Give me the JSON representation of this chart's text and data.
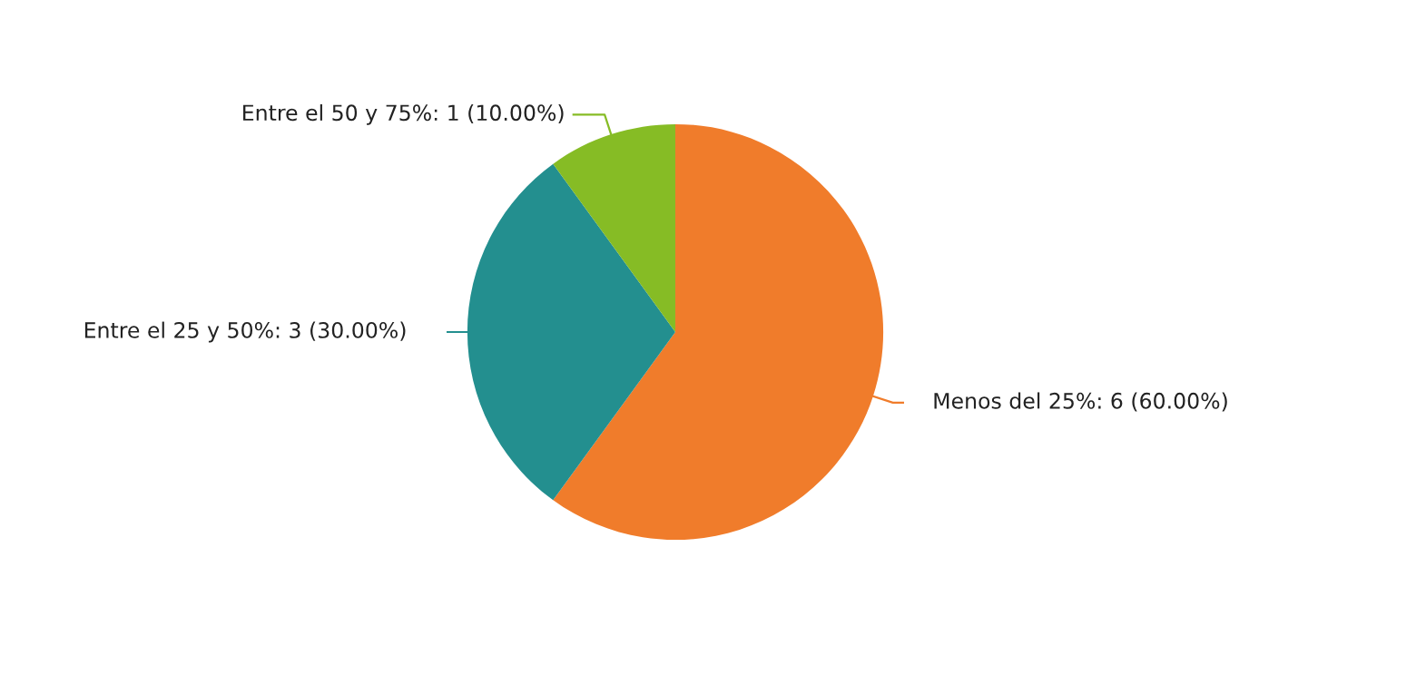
{
  "chart_data": {
    "type": "pie",
    "categories": [
      "Menos del 25%",
      "Entre el 25 y 50%",
      "Entre el 50 y 75%"
    ],
    "values": [
      6,
      3,
      1
    ],
    "colors": [
      "#f07c2b",
      "#238f8f",
      "#86bc25"
    ],
    "value_labels": [
      "6 (60.00%)",
      "3 (30.00%)",
      "1 (10.00%)"
    ]
  }
}
